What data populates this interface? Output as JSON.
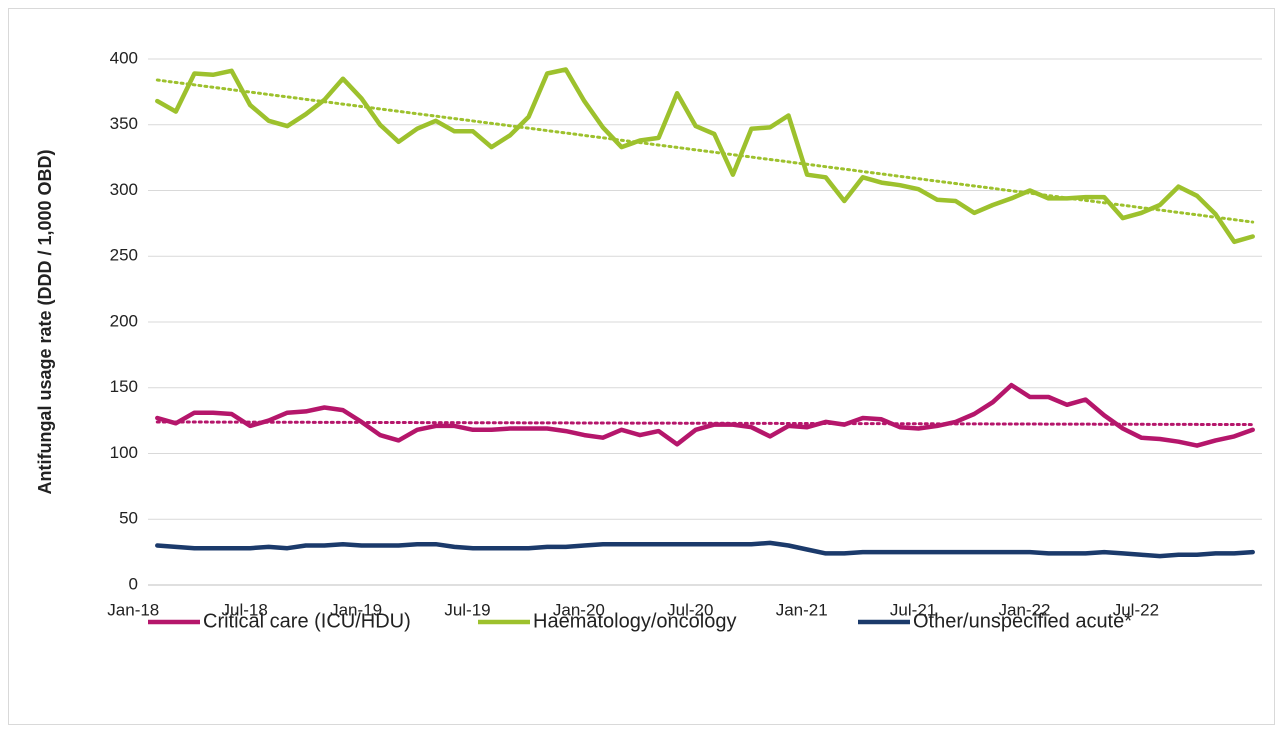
{
  "chart_data": {
    "type": "line",
    "y_label": "Antifungal usage rate (DDD / 1,000 OBD)",
    "categories": [
      "Jan-18",
      null,
      null,
      null,
      null,
      null,
      "Jul-18",
      null,
      null,
      null,
      null,
      null,
      "Jan-19",
      null,
      null,
      null,
      null,
      null,
      "Jul-19",
      null,
      null,
      null,
      null,
      null,
      "Jan-20",
      null,
      null,
      null,
      null,
      null,
      "Jul-20",
      null,
      null,
      null,
      null,
      null,
      "Jan-21",
      null,
      null,
      null,
      null,
      null,
      "Jul-21",
      null,
      null,
      null,
      null,
      null,
      "Jan-22",
      null,
      null,
      null,
      null,
      null,
      "Jul-22",
      null,
      null,
      null,
      null,
      null
    ],
    "series": [
      {
        "name": "Critical care (ICU/HDU)",
        "color": "#b5166b",
        "trend": [
          124,
          122
        ],
        "values": [
          127,
          123,
          131,
          131,
          130,
          121,
          125,
          131,
          132,
          135,
          133,
          124,
          114,
          110,
          118,
          121,
          121,
          118,
          118,
          119,
          119,
          119,
          117,
          114,
          112,
          118,
          114,
          117,
          107,
          118,
          122,
          122,
          120,
          113,
          121,
          120,
          124,
          122,
          127,
          126,
          120,
          119,
          121,
          124,
          130,
          139,
          152,
          143,
          143,
          137,
          141,
          129,
          119,
          112,
          111,
          109,
          106,
          110,
          113,
          118
        ]
      },
      {
        "name": "Haematology/oncology",
        "color": "#9dc12d",
        "trend": [
          384,
          276
        ],
        "values": [
          368,
          360,
          389,
          388,
          391,
          365,
          353,
          349,
          358,
          369,
          385,
          370,
          350,
          337,
          347,
          353,
          345,
          345,
          333,
          342,
          356,
          389,
          392,
          368,
          348,
          333,
          338,
          340,
          374,
          349,
          343,
          312,
          347,
          348,
          357,
          312,
          310,
          292,
          310,
          306,
          304,
          301,
          293,
          292,
          283,
          289,
          294,
          300,
          294,
          294,
          295,
          295,
          279,
          283,
          289,
          303,
          296,
          282,
          261,
          265
        ]
      },
      {
        "name": "Other/unspecified acute*",
        "color": "#1b3a6b",
        "values": [
          30,
          29,
          28,
          28,
          28,
          28,
          29,
          28,
          30,
          30,
          31,
          30,
          30,
          30,
          31,
          31,
          29,
          28,
          28,
          28,
          28,
          29,
          29,
          30,
          31,
          31,
          31,
          31,
          31,
          31,
          31,
          31,
          31,
          32,
          30,
          27,
          24,
          24,
          25,
          25,
          25,
          25,
          25,
          25,
          25,
          25,
          25,
          25,
          24,
          24,
          24,
          25,
          24,
          23,
          22,
          23,
          23,
          24,
          24,
          25
        ]
      }
    ],
    "ylim": [
      0,
      400
    ],
    "yticks": [
      0,
      50,
      100,
      150,
      200,
      250,
      300,
      350,
      400
    ],
    "grid": true,
    "legend": "bottom"
  }
}
